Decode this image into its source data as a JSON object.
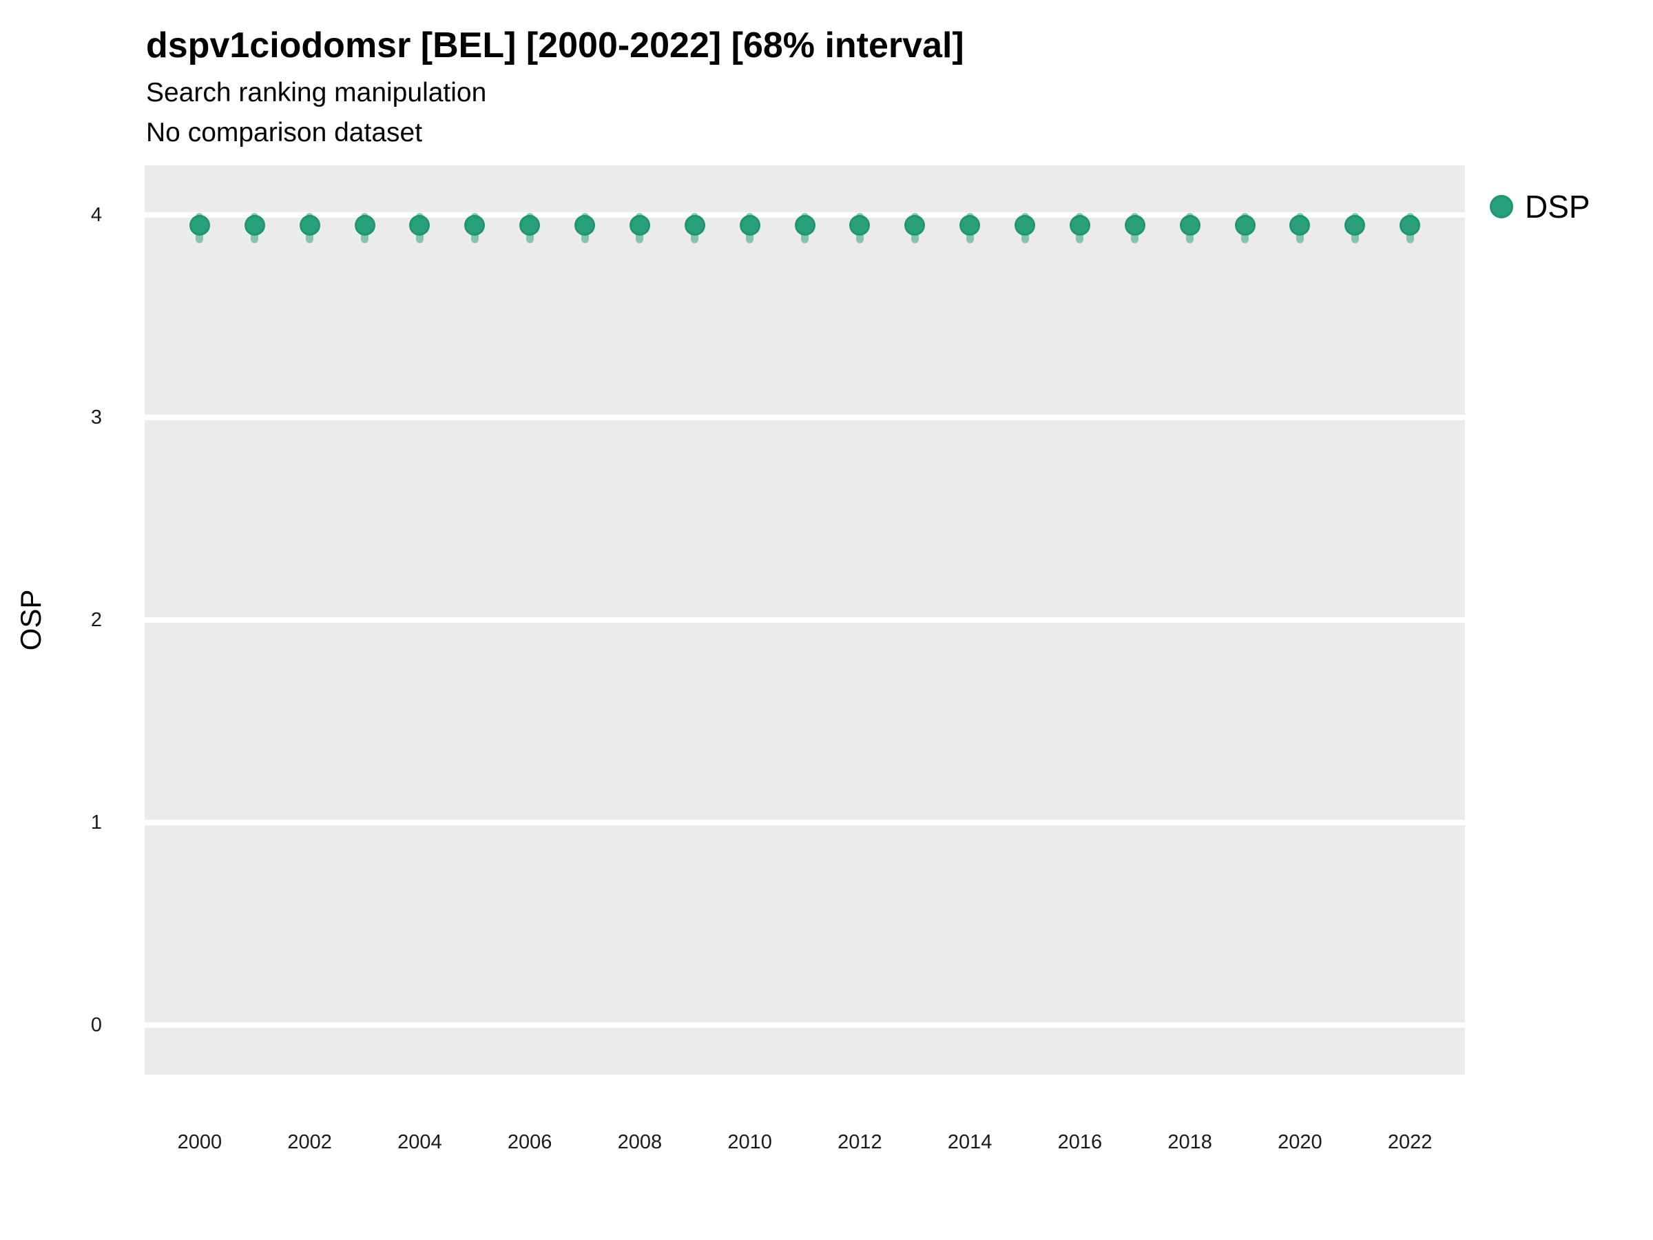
{
  "header": {
    "title": "dspv1ciodomsr [BEL] [2000-2022] [68% interval]",
    "subtitle": "Search ranking manipulation",
    "note": "No comparison dataset"
  },
  "legend": {
    "label": "DSP"
  },
  "colors": {
    "panel_background": "#EBEBEB",
    "gridline": "#FFFFFF",
    "point_fill": "#27A07B",
    "point_border": "#1E9770",
    "interval": "rgba(27,158,119,0.5)",
    "text": "#1A1A1A"
  },
  "chart_data": {
    "type": "pointrange",
    "title": "dspv1ciodomsr [BEL] [2000-2022] [68% interval]",
    "subtitle": "Search ranking manipulation",
    "note": "No comparison dataset",
    "xlabel": "",
    "ylabel": "OSP",
    "legend_position": "right",
    "grid": "horizontal-only",
    "interval_note": "68% interval",
    "x": [
      2000,
      2001,
      2002,
      2003,
      2004,
      2005,
      2006,
      2007,
      2008,
      2009,
      2010,
      2011,
      2012,
      2013,
      2014,
      2015,
      2016,
      2017,
      2018,
      2019,
      2020,
      2021,
      2022
    ],
    "series": [
      {
        "name": "DSP",
        "values": [
          3.95,
          3.95,
          3.95,
          3.95,
          3.95,
          3.95,
          3.95,
          3.95,
          3.95,
          3.95,
          3.95,
          3.95,
          3.95,
          3.95,
          3.95,
          3.95,
          3.95,
          3.95,
          3.95,
          3.95,
          3.95,
          3.95,
          3.95
        ],
        "low": [
          3.88,
          3.88,
          3.88,
          3.88,
          3.88,
          3.88,
          3.88,
          3.88,
          3.88,
          3.88,
          3.88,
          3.88,
          3.88,
          3.88,
          3.88,
          3.88,
          3.88,
          3.88,
          3.88,
          3.88,
          3.88,
          3.88,
          3.88
        ],
        "high": [
          3.99,
          3.99,
          3.99,
          3.99,
          3.99,
          3.99,
          3.99,
          3.99,
          3.99,
          3.99,
          3.99,
          3.99,
          3.99,
          3.99,
          3.99,
          3.99,
          3.99,
          3.99,
          3.99,
          3.99,
          3.99,
          3.99,
          3.99
        ]
      }
    ],
    "x_ticks": [
      2000,
      2002,
      2004,
      2006,
      2008,
      2010,
      2012,
      2014,
      2016,
      2018,
      2020,
      2022
    ],
    "y_ticks": [
      0,
      1,
      2,
      3,
      4
    ],
    "xlim": [
      1999.0,
      2023.0
    ],
    "ylim": [
      -0.245,
      4.245
    ]
  }
}
